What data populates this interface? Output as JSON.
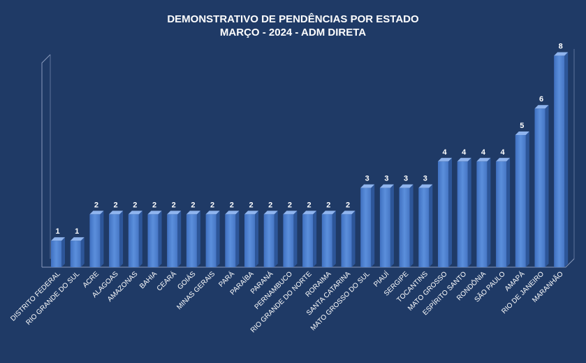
{
  "chart_data": {
    "type": "bar",
    "title_line1": "DEMONSTRATIVO DE PENDÊNCIAS POR ESTADO",
    "title_line2": "MARÇO - 2024 - ADM DIRETA",
    "categories": [
      "DISTRITO FEDERAL",
      "RIO GRANDE DO SUL",
      "ACRE",
      "ALAGOAS",
      "AMAZONAS",
      "BAHIA",
      "CEARÁ",
      "GOIÁS",
      "MINAS GERAIS",
      "PARÁ",
      "PARAÍBA",
      "PARANÁ",
      "PERNAMBUCO",
      "RIO GRANDE DO NORTE",
      "RORAIMA",
      "SANTA CATARINA",
      "MATO GROSSO DO SUL",
      "PIAUÍ",
      "SERGIPE",
      "TOCANTINS",
      "MATO GROSSO",
      "ESPÍRITO SANTO",
      "RONDÔNIA",
      "SÃO PAULO",
      "AMAPÁ",
      "RIO DE JANEIRO",
      "MARANHÃO"
    ],
    "values": [
      1,
      1,
      2,
      2,
      2,
      2,
      2,
      2,
      2,
      2,
      2,
      2,
      2,
      2,
      2,
      2,
      3,
      3,
      3,
      3,
      4,
      4,
      4,
      4,
      5,
      6,
      8
    ],
    "value_labels": [
      "1",
      "1",
      "2",
      "2",
      "2",
      "2",
      "2",
      "2",
      "2",
      "2",
      "2",
      "2",
      "2",
      "2",
      "2",
      "2",
      "3",
      "3",
      "3",
      "3",
      "4",
      "4",
      "4",
      "4",
      "5",
      "6",
      "8"
    ],
    "ylim": [
      0,
      8
    ],
    "grid": false,
    "legend": "none",
    "bar_color": "#4a7fd0",
    "background_color": "#1f3a66"
  }
}
